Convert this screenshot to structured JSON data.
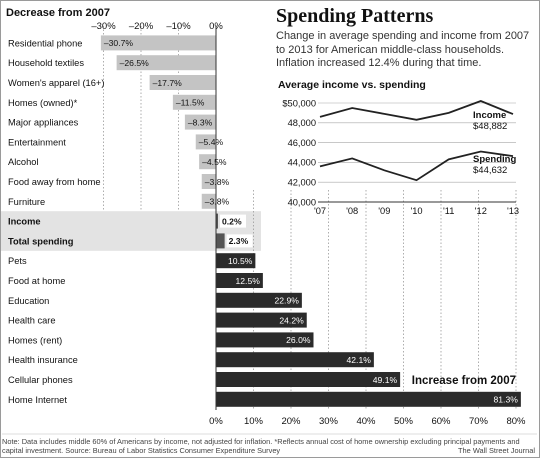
{
  "chart_data": [
    {
      "type": "bar",
      "orientation": "horizontal",
      "header_negative": "Decrease from 2007",
      "header_positive": "Increase from 2007",
      "axis_top_ticks": [
        "–30%",
        "–20%",
        "–10%",
        "0%"
      ],
      "axis_bottom_ticks": [
        "0%",
        "10%",
        "20%",
        "30%",
        "40%",
        "50%",
        "60%",
        "70%",
        "80%"
      ],
      "xlim": [
        -30,
        80
      ],
      "categories": [
        {
          "name": "Residential phone",
          "value": -30.7,
          "label": "–30.7%",
          "bold": false
        },
        {
          "name": "Household textiles",
          "value": -26.5,
          "label": "–26.5%",
          "bold": false
        },
        {
          "name": "Women's apparel (16+)",
          "value": -17.7,
          "label": "–17.7%",
          "bold": false
        },
        {
          "name": "Homes (owned)*",
          "value": -11.5,
          "label": "–11.5%",
          "bold": false
        },
        {
          "name": "Major appliances",
          "value": -8.3,
          "label": "–8.3%",
          "bold": false
        },
        {
          "name": "Entertainment",
          "value": -5.4,
          "label": "–5.4%",
          "bold": false
        },
        {
          "name": "Alcohol",
          "value": -4.5,
          "label": "–4.5%",
          "bold": false
        },
        {
          "name": "Food away from home",
          "value": -3.8,
          "label": "–3.8%",
          "bold": false
        },
        {
          "name": "Furniture",
          "value": -3.8,
          "label": "–3.8%",
          "bold": false
        },
        {
          "name": "Income",
          "value": 0.2,
          "label": "0.2%",
          "bold": true
        },
        {
          "name": "Total spending",
          "value": 2.3,
          "label": "2.3%",
          "bold": true
        },
        {
          "name": "Pets",
          "value": 10.5,
          "label": "10.5%",
          "bold": false
        },
        {
          "name": "Food at home",
          "value": 12.5,
          "label": "12.5%",
          "bold": false
        },
        {
          "name": "Education",
          "value": 22.9,
          "label": "22.9%",
          "bold": false
        },
        {
          "name": "Health care",
          "value": 24.2,
          "label": "24.2%",
          "bold": false
        },
        {
          "name": "Homes (rent)",
          "value": 26.0,
          "label": "26.0%",
          "bold": false
        },
        {
          "name": "Health insurance",
          "value": 42.1,
          "label": "42.1%",
          "bold": false
        },
        {
          "name": "Cellular phones",
          "value": 49.1,
          "label": "49.1%",
          "bold": false
        },
        {
          "name": "Home Internet",
          "value": 81.3,
          "label": "81.3%",
          "bold": false
        }
      ],
      "colors": {
        "negative": "#c4c4c4",
        "positive": "#2b2b2b",
        "highlight_band": "#e3e3e3"
      }
    },
    {
      "type": "line",
      "title": "Average income vs. spending",
      "x": [
        "'07",
        "'08",
        "'09",
        "'10",
        "'11",
        "'12",
        "'13"
      ],
      "ylim": [
        40000,
        50000
      ],
      "y_ticks": [
        "$50,000",
        "48,000",
        "46,000",
        "44,000",
        "42,000",
        "40,000"
      ],
      "series": [
        {
          "name": "Income",
          "end_label": "$48,882",
          "values": [
            48600,
            49500,
            48900,
            48300,
            49000,
            50200,
            48882
          ]
        },
        {
          "name": "Spending",
          "end_label": "$44,632",
          "values": [
            43600,
            44400,
            43200,
            42200,
            44300,
            45100,
            44632
          ]
        }
      ],
      "grid": true
    }
  ],
  "header": {
    "title": "Spending Patterns",
    "subtitle": "Change in average spending and income from 2007 to 2013 for American middle-class households. Inflation increased 12.4% during that time."
  },
  "footer": {
    "note": "Note: Data includes middle 60% of Americans by income, not adjusted for inflation. *Reflects annual cost of home ownership excluding principal payments and capital investment.",
    "source": "Source:  Bureau of Labor Statistics Consumer Expenditure Survey",
    "credit": "The Wall Street Journal"
  }
}
